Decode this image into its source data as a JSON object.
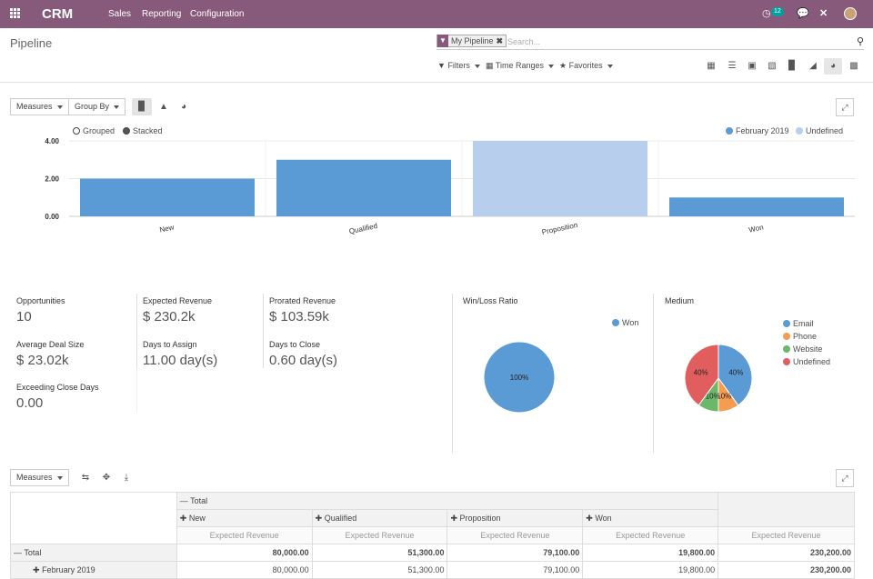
{
  "topbar": {
    "app_name": "CRM",
    "menus": [
      "Sales",
      "Reporting",
      "Configuration"
    ],
    "activity_count": "12"
  },
  "page": {
    "title": "Pipeline"
  },
  "search": {
    "facet_label": "My Pipeline",
    "placeholder": "Search..."
  },
  "filters": {
    "filters_label": "Filters",
    "time_ranges_label": "Time Ranges",
    "favorites_label": "Favorites"
  },
  "views": [
    "kanban-icon",
    "list-icon",
    "calendar-icon",
    "pivot-icon",
    "graph-icon",
    "cohort-icon",
    "dashboard-icon",
    "grid-icon"
  ],
  "graph_toolbar": {
    "measures_label": "Measures",
    "group_by_label": "Group By",
    "grouped_label": "Grouped",
    "stacked_label": "Stacked"
  },
  "chart_data": {
    "type": "bar",
    "categories": [
      "New",
      "Qualified",
      "Proposition",
      "Won"
    ],
    "series": [
      {
        "name": "February 2019",
        "values": [
          2,
          3,
          null,
          1
        ],
        "color": "#5b9bd5"
      },
      {
        "name": "Undefined",
        "values": [
          null,
          null,
          4,
          null
        ],
        "color": "#b7cfec"
      }
    ],
    "ylim": [
      0,
      4
    ],
    "yticks": [
      "0.00",
      "2.00",
      "4.00"
    ],
    "legend_position": "top-right",
    "grid": true
  },
  "kpis": [
    {
      "label": "Opportunities",
      "value": "10"
    },
    {
      "label": "Expected Revenue",
      "value": "$ 230.2k"
    },
    {
      "label": "Prorated Revenue",
      "value": "$ 103.59k"
    },
    {
      "label": "Average Deal Size",
      "value": "$ 23.02k"
    },
    {
      "label": "Days to Assign",
      "value": "11.00 day(s)"
    },
    {
      "label": "Days to Close",
      "value": "0.60 day(s)"
    },
    {
      "label": "Exceeding Close Days",
      "value": "0.00"
    }
  ],
  "winloss": {
    "title": "Win/Loss Ratio",
    "legend": "Won",
    "color": "#5b9bd5",
    "slice_label": "100%",
    "value": 100
  },
  "medium": {
    "title": "Medium",
    "slices": [
      {
        "name": "Email",
        "value": 40,
        "label": "40%",
        "color": "#5b9bd5"
      },
      {
        "name": "Phone",
        "value": 10,
        "label": "10%",
        "color": "#f59b52"
      },
      {
        "name": "Website",
        "value": 10,
        "label": "10%",
        "color": "#6ab86a"
      },
      {
        "name": "Undefined",
        "value": 40,
        "label": "40%",
        "color": "#e25e5e"
      }
    ]
  },
  "pivot": {
    "measures_label": "Measures",
    "total_label": "Total",
    "columns": [
      "New",
      "Qualified",
      "Proposition",
      "Won"
    ],
    "measure_name": "Expected Revenue",
    "rows": [
      {
        "label": "Total",
        "values": [
          "80,000.00",
          "51,300.00",
          "79,100.00",
          "19,800.00",
          "230,200.00"
        ]
      },
      {
        "label": "February 2019",
        "values": [
          "80,000.00",
          "51,300.00",
          "79,100.00",
          "19,800.00",
          "230,200.00"
        ]
      }
    ]
  }
}
